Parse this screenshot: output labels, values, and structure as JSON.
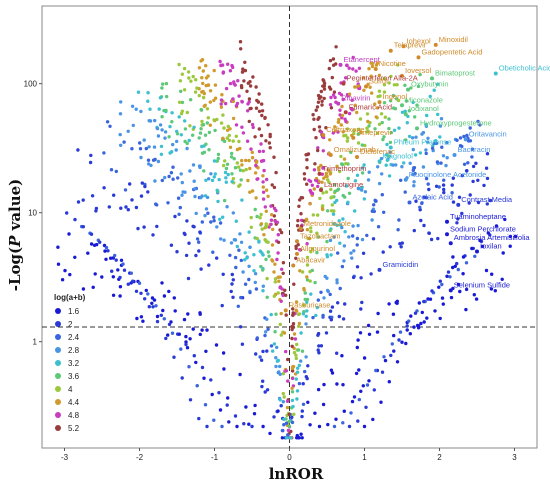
{
  "chart_data": {
    "type": "scatter",
    "title": "",
    "xlabel": "lnROR",
    "ylabel_prefix": "-Log(",
    "ylabel_italic": "P",
    "ylabel_suffix": " value)",
    "xlim": [
      -3.3,
      3.3
    ],
    "ylim": [
      0.15,
      400
    ],
    "y_scale": "log",
    "grid": false,
    "x_ticks": [
      "-3",
      "-2",
      "-1",
      "0",
      "1",
      "2",
      "3"
    ],
    "y_ticks": [
      "1",
      "10",
      "100"
    ],
    "reference_lines": {
      "vertical_x": 0,
      "horizontal_y": 1.3
    },
    "legend": {
      "title": "log(a+b)",
      "position": "bottom-left",
      "entries": [
        {
          "label": "1.6",
          "color": "#1a1ad6"
        },
        {
          "label": "2",
          "color": "#2a3ad6"
        },
        {
          "label": "2.4",
          "color": "#3a64de"
        },
        {
          "label": "2.8",
          "color": "#4a94e6"
        },
        {
          "label": "3.2",
          "color": "#3cc0d0"
        },
        {
          "label": "3.6",
          "color": "#5cc878"
        },
        {
          "label": "4",
          "color": "#9cc83c"
        },
        {
          "label": "4.4",
          "color": "#d09a2c"
        },
        {
          "label": "4.8",
          "color": "#c83cc0"
        },
        {
          "label": "5.2",
          "color": "#9a3c3c"
        }
      ]
    },
    "labeled_points": [
      {
        "label": "Telaprevir",
        "x": 1.35,
        "y": 180,
        "color": "#d08a2a"
      },
      {
        "label": "Iohexol",
        "x": 1.52,
        "y": 195,
        "color": "#d08a2a"
      },
      {
        "label": "Minoxidil",
        "x": 1.95,
        "y": 200,
        "color": "#d08a2a"
      },
      {
        "label": "Gadopentetic Acid",
        "x": 1.72,
        "y": 160,
        "color": "#d08a2a"
      },
      {
        "label": "Etanercept",
        "x": 0.68,
        "y": 140,
        "color": "#c040c0"
      },
      {
        "label": "Nicotine",
        "x": 1.15,
        "y": 130,
        "color": "#d08a2a"
      },
      {
        "label": "Obeticholic Acid",
        "x": 2.75,
        "y": 120,
        "color": "#3cc0d0"
      },
      {
        "label": "Ioversol",
        "x": 1.5,
        "y": 115,
        "color": "#d08a2a"
      },
      {
        "label": "Bimatoprost",
        "x": 1.9,
        "y": 110,
        "color": "#5cc878"
      },
      {
        "label": "Peginterferon Alfa-2A",
        "x": 0.72,
        "y": 100,
        "color": "#b03c3c"
      },
      {
        "label": "Sulfur",
        "x": 1.02,
        "y": 95,
        "color": "#d08a2a"
      },
      {
        "label": "Oxybutynin",
        "x": 1.58,
        "y": 90,
        "color": "#5cc878"
      },
      {
        "label": "Ribavirin",
        "x": 0.65,
        "y": 70,
        "color": "#c040c0"
      },
      {
        "label": "Ingenol",
        "x": 1.2,
        "y": 72,
        "color": "#d08a2a"
      },
      {
        "label": "Miconazole",
        "x": 1.5,
        "y": 68,
        "color": "#5cc878"
      },
      {
        "label": "Fumaric Acid",
        "x": 0.75,
        "y": 60,
        "color": "#b03c3c"
      },
      {
        "label": "Iodixanol",
        "x": 1.55,
        "y": 58,
        "color": "#5cc878"
      },
      {
        "label": "Hydroxyprogesterone",
        "x": 1.7,
        "y": 45,
        "color": "#5cc878"
      },
      {
        "label": "Ceftriaxone",
        "x": 0.45,
        "y": 40,
        "color": "#d08a2a"
      },
      {
        "label": "Simeprevir",
        "x": 0.85,
        "y": 38,
        "color": "#d08a2a"
      },
      {
        "label": "Oritavancin",
        "x": 2.35,
        "y": 37,
        "color": "#4a94e6"
      },
      {
        "label": "Phleum Pratense",
        "x": 1.35,
        "y": 32,
        "color": "#3cc0d0"
      },
      {
        "label": "Omalizumab",
        "x": 0.55,
        "y": 28,
        "color": "#d08a2a"
      },
      {
        "label": "Diclofenac",
        "x": 0.9,
        "y": 27,
        "color": "#d08a2a"
      },
      {
        "label": "Bacitracin",
        "x": 2.2,
        "y": 28,
        "color": "#4a94e6"
      },
      {
        "label": "Magnolol",
        "x": 1.2,
        "y": 25,
        "color": "#3cc0d0"
      },
      {
        "label": "Trimethoprim",
        "x": 0.4,
        "y": 20,
        "color": "#b03c3c"
      },
      {
        "label": "Fluocinolone Acetonide",
        "x": 1.55,
        "y": 18,
        "color": "#4a94e6"
      },
      {
        "label": "Lamotrigine",
        "x": 0.42,
        "y": 15,
        "color": "#b03c3c"
      },
      {
        "label": "Azelaic Acid",
        "x": 1.6,
        "y": 12,
        "color": "#3a64de"
      },
      {
        "label": "Contrast Media",
        "x": 2.25,
        "y": 11.5,
        "color": "#2a3ad6"
      },
      {
        "label": "Tuaminoheptane",
        "x": 2.1,
        "y": 8.5,
        "color": "#1a1ad6"
      },
      {
        "label": "Metronidazole",
        "x": 0.15,
        "y": 7.5,
        "color": "#d08a2a"
      },
      {
        "label": "Sodium Perchlorate",
        "x": 2.1,
        "y": 6.8,
        "color": "#1a1ad6"
      },
      {
        "label": "Tazobactam",
        "x": 0.1,
        "y": 6.0,
        "color": "#d08a2a"
      },
      {
        "label": "Ambrosia Artemisiifolia",
        "x": 2.15,
        "y": 5.8,
        "color": "#1a1ad6"
      },
      {
        "label": "Ioxilan",
        "x": 2.5,
        "y": 5.0,
        "color": "#1a1ad6"
      },
      {
        "label": "Allopurinol",
        "x": 0.1,
        "y": 4.8,
        "color": "#d08a2a"
      },
      {
        "label": "Abacavir",
        "x": 0.05,
        "y": 3.9,
        "color": "#d08a2a"
      },
      {
        "label": "Gramicidin",
        "x": 1.2,
        "y": 3.6,
        "color": "#2a3ad6"
      },
      {
        "label": "Selenium Sulfide",
        "x": 2.15,
        "y": 2.5,
        "color": "#1a1ad6"
      },
      {
        "label": "Rasburicase",
        "x": -0.05,
        "y": 1.75,
        "color": "#d08a2a"
      }
    ]
  }
}
